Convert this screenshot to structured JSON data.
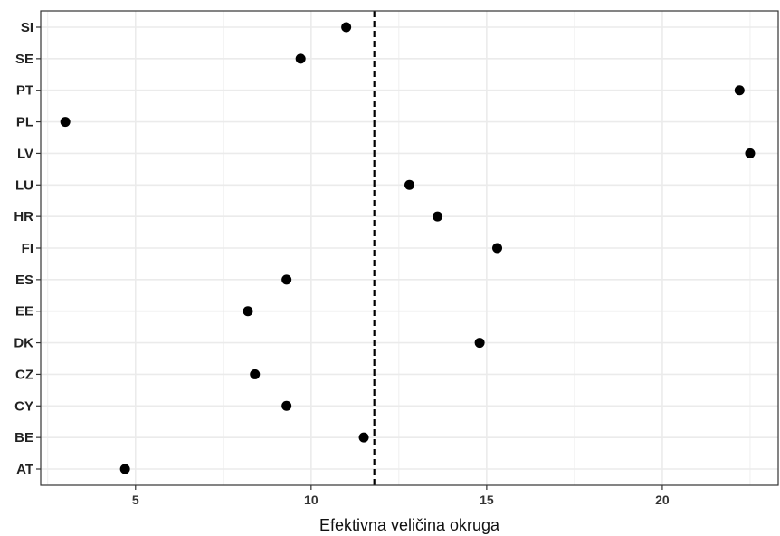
{
  "chart_data": {
    "type": "scatter",
    "title": "",
    "xlabel": "Efektivna veličina okruga",
    "ylabel": "",
    "xlim": [
      2.3,
      23.3
    ],
    "x_ticks": [
      5,
      10,
      15,
      20
    ],
    "categories": [
      "AT",
      "BE",
      "CY",
      "CZ",
      "DK",
      "EE",
      "ES",
      "FI",
      "HR",
      "LU",
      "LV",
      "PL",
      "PT",
      "SE",
      "SI"
    ],
    "values": [
      4.7,
      11.5,
      9.3,
      8.4,
      14.8,
      8.2,
      9.3,
      15.3,
      13.6,
      12.8,
      22.5,
      3.0,
      22.2,
      9.7,
      11.0
    ],
    "reference_line": {
      "x": 11.8,
      "style": "dashed"
    },
    "grid": true,
    "legend": "none",
    "colors": {
      "point": "#000000",
      "grid": "#ebebeb",
      "panel_border": "#333333",
      "reference_line": "#000000"
    }
  }
}
